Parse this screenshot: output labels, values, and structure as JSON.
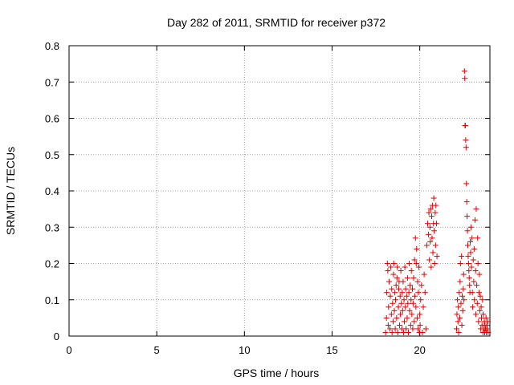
{
  "chart_data": {
    "type": "scatter",
    "title": "Day 282 of 2011, SRMTID for receiver p372",
    "xlabel": "GPS time / hours",
    "ylabel": "SRMTID / TECUs",
    "xlim": [
      0,
      24
    ],
    "ylim": [
      0,
      0.8
    ],
    "xticks": [
      0,
      5,
      10,
      15,
      20
    ],
    "yticks": [
      0,
      0.1,
      0.2,
      0.3,
      0.4,
      0.5,
      0.6,
      0.7,
      0.8
    ],
    "xtick_labels": [
      "0",
      "5",
      "10",
      "15",
      "20"
    ],
    "ytick_labels": [
      "0",
      "0.1",
      "0.2",
      "0.3",
      "0.4",
      "0.5",
      "0.6",
      "0.7",
      "0.8"
    ],
    "grid": true,
    "marker": "+",
    "color": "#e00000",
    "series": [
      {
        "points": [
          [
            18.05,
            0.01
          ],
          [
            18.1,
            0.05
          ],
          [
            18.12,
            0.12
          ],
          [
            18.15,
            0.2
          ],
          [
            18.18,
            0.18
          ],
          [
            18.2,
            0.03
          ],
          [
            18.22,
            0.08
          ],
          [
            18.25,
            0.15
          ],
          [
            18.3,
            0.02
          ],
          [
            18.32,
            0.11
          ],
          [
            18.35,
            0.19
          ],
          [
            18.38,
            0.06
          ],
          [
            18.4,
            0.13
          ],
          [
            18.42,
            0.01
          ],
          [
            18.45,
            0.09
          ],
          [
            18.48,
            0.04
          ],
          [
            18.5,
            0.17
          ],
          [
            18.52,
            0.2
          ],
          [
            18.55,
            0.07
          ],
          [
            18.58,
            0.12
          ],
          [
            18.6,
            0.02
          ],
          [
            18.62,
            0.1
          ],
          [
            18.65,
            0.14
          ],
          [
            18.68,
            0.05
          ],
          [
            18.7,
            0.16
          ],
          [
            18.72,
            0.19
          ],
          [
            18.75,
            0.01
          ],
          [
            18.78,
            0.08
          ],
          [
            18.8,
            0.13
          ],
          [
            18.82,
            0.15
          ],
          [
            18.85,
            0.03
          ],
          [
            18.88,
            0.11
          ],
          [
            18.9,
            0.06
          ],
          [
            18.92,
            0.18
          ],
          [
            18.95,
            0.09
          ],
          [
            18.98,
            0.02
          ],
          [
            19.0,
            0.12
          ],
          [
            19.02,
            0.07
          ],
          [
            19.05,
            0.15
          ],
          [
            19.08,
            0.01
          ],
          [
            19.1,
            0.1
          ],
          [
            19.12,
            0.04
          ],
          [
            19.15,
            0.19
          ],
          [
            19.18,
            0.08
          ],
          [
            19.2,
            0.13
          ],
          [
            19.22,
            0.02
          ],
          [
            19.25,
            0.11
          ],
          [
            19.28,
            0.05
          ],
          [
            19.3,
            0.16
          ],
          [
            19.32,
            0.09
          ],
          [
            19.35,
            0.01
          ],
          [
            19.38,
            0.12
          ],
          [
            19.4,
            0.2
          ],
          [
            19.42,
            0.07
          ],
          [
            19.45,
            0.14
          ],
          [
            19.48,
            0.03
          ],
          [
            19.5,
            0.1
          ],
          [
            19.52,
            0.18
          ],
          [
            19.55,
            0.06
          ],
          [
            19.58,
            0.13
          ],
          [
            19.6,
            0.02
          ],
          [
            19.62,
            0.09
          ],
          [
            19.65,
            0.16
          ],
          [
            19.68,
            0.04
          ],
          [
            19.7,
            0.21
          ],
          [
            19.72,
            0.11
          ],
          [
            19.75,
            0.27
          ],
          [
            19.78,
            0.08
          ],
          [
            19.8,
            0.2
          ],
          [
            19.82,
            0.24
          ],
          [
            19.85,
            0.05
          ],
          [
            19.88,
            0.15
          ],
          [
            19.9,
            0.02
          ],
          [
            19.92,
            0.12
          ],
          [
            19.95,
            0.19
          ],
          [
            19.98,
            0.01
          ],
          [
            20.0,
            0.06
          ],
          [
            20.02,
            0.03
          ],
          [
            20.05,
            0.1
          ],
          [
            20.1,
            0.14
          ],
          [
            20.15,
            0.01
          ],
          [
            20.2,
            0.08
          ],
          [
            20.25,
            0.17
          ],
          [
            20.3,
            0.12
          ],
          [
            20.35,
            0.02
          ],
          [
            20.4,
            0.25
          ],
          [
            20.45,
            0.31
          ],
          [
            20.5,
            0.28
          ],
          [
            20.52,
            0.34
          ],
          [
            20.55,
            0.21
          ],
          [
            20.58,
            0.3
          ],
          [
            20.6,
            0.26
          ],
          [
            20.62,
            0.35
          ],
          [
            20.65,
            0.19
          ],
          [
            20.68,
            0.33
          ],
          [
            20.7,
            0.27
          ],
          [
            20.72,
            0.36
          ],
          [
            20.75,
            0.23
          ],
          [
            20.78,
            0.31
          ],
          [
            20.8,
            0.38
          ],
          [
            20.82,
            0.29
          ],
          [
            20.85,
            0.2
          ],
          [
            20.88,
            0.34
          ],
          [
            20.9,
            0.25
          ],
          [
            20.92,
            0.36
          ],
          [
            20.95,
            0.31
          ],
          [
            20.98,
            0.22
          ],
          [
            22.1,
            0.02
          ],
          [
            22.12,
            0.06
          ],
          [
            22.15,
            0.1
          ],
          [
            22.18,
            0.04
          ],
          [
            22.2,
            0.08
          ],
          [
            22.22,
            0.01
          ],
          [
            22.25,
            0.12
          ],
          [
            22.28,
            0.05
          ],
          [
            22.3,
            0.15
          ],
          [
            22.32,
            0.2
          ],
          [
            22.35,
            0.09
          ],
          [
            22.38,
            0.22
          ],
          [
            22.4,
            0.03
          ],
          [
            22.42,
            0.11
          ],
          [
            22.45,
            0.07
          ],
          [
            22.48,
            0.13
          ],
          [
            22.5,
            0.17
          ],
          [
            22.52,
            0.1
          ],
          [
            22.55,
            0.73
          ],
          [
            22.57,
            0.71
          ],
          [
            22.58,
            0.58
          ],
          [
            22.6,
            0.58
          ],
          [
            22.62,
            0.54
          ],
          [
            22.64,
            0.52
          ],
          [
            22.66,
            0.42
          ],
          [
            22.68,
            0.37
          ],
          [
            22.7,
            0.33
          ],
          [
            22.72,
            0.29
          ],
          [
            22.74,
            0.25
          ],
          [
            22.76,
            0.22
          ],
          [
            22.78,
            0.2
          ],
          [
            22.8,
            0.18
          ],
          [
            22.82,
            0.16
          ],
          [
            22.84,
            0.14
          ],
          [
            22.86,
            0.12
          ],
          [
            22.88,
            0.26
          ],
          [
            22.9,
            0.23
          ],
          [
            22.92,
            0.3
          ],
          [
            22.95,
            0.19
          ],
          [
            22.98,
            0.27
          ],
          [
            23.0,
            0.12
          ],
          [
            23.02,
            0.08
          ],
          [
            23.05,
            0.21
          ],
          [
            23.08,
            0.15
          ],
          [
            23.1,
            0.24
          ],
          [
            23.12,
            0.1
          ],
          [
            23.15,
            0.32
          ],
          [
            23.18,
            0.18
          ],
          [
            23.2,
            0.06
          ],
          [
            23.22,
            0.35
          ],
          [
            23.25,
            0.14
          ],
          [
            23.28,
            0.09
          ],
          [
            23.3,
            0.27
          ],
          [
            23.32,
            0.2
          ],
          [
            23.35,
            0.04
          ],
          [
            23.38,
            0.12
          ],
          [
            23.4,
            0.17
          ],
          [
            23.42,
            0.07
          ],
          [
            23.45,
            0.11
          ],
          [
            23.48,
            0.02
          ],
          [
            23.5,
            0.08
          ],
          [
            23.52,
            0.05
          ],
          [
            23.55,
            0.03
          ],
          [
            23.58,
            0.1
          ],
          [
            23.6,
            0.01
          ],
          [
            23.62,
            0.06
          ],
          [
            23.65,
            0.02
          ],
          [
            23.68,
            0.04
          ],
          [
            23.7,
            0.01
          ],
          [
            23.72,
            0.03
          ],
          [
            23.75,
            0.02
          ],
          [
            23.78,
            0.05
          ],
          [
            23.8,
            0.01
          ],
          [
            23.82,
            0.03
          ],
          [
            23.85,
            0.02
          ],
          [
            23.88,
            0.04
          ],
          [
            23.9,
            0.01
          ]
        ]
      }
    ]
  }
}
